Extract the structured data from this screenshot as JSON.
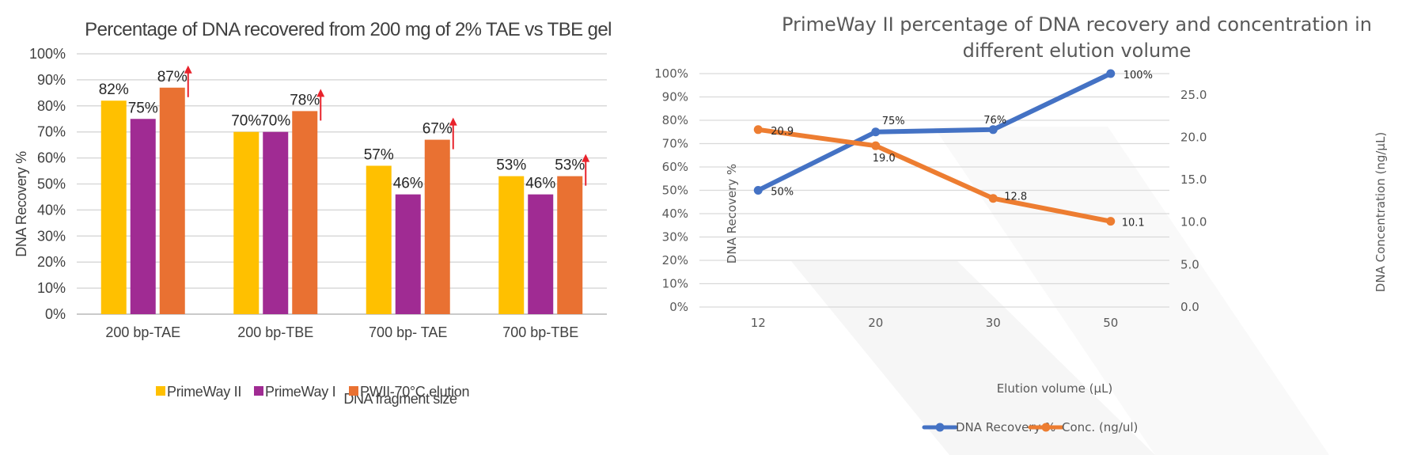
{
  "chart_data": [
    {
      "type": "bar",
      "title": "Percentage of DNA recovered from 200 mg of 2% TAE vs TBE gel",
      "xlabel": "DNA fragment size",
      "ylabel": "DNA Recovery %",
      "ylim": [
        0,
        100
      ],
      "y_ticks": [
        "0%",
        "10%",
        "20%",
        "30%",
        "40%",
        "50%",
        "60%",
        "70%",
        "80%",
        "90%",
        "100%"
      ],
      "categories": [
        "200 bp-TAE",
        "200 bp-TBE",
        "700 bp- TAE",
        "700 bp-TBE"
      ],
      "series": [
        {
          "name": "PrimeWay II",
          "color": "#FFC000",
          "values": [
            82,
            70,
            57,
            53
          ],
          "labels": [
            "82%",
            "70%",
            "57%",
            "53%"
          ]
        },
        {
          "name": "PrimeWay I",
          "color": "#A02B93",
          "values": [
            75,
            70,
            46,
            46
          ],
          "labels": [
            "75%",
            "70%",
            "46%",
            "46%"
          ]
        },
        {
          "name": "PWII-70°C elution",
          "color": "#E97132",
          "values": [
            87,
            78,
            67,
            53
          ],
          "labels": [
            "87%",
            "78%",
            "67%",
            "53%"
          ]
        }
      ],
      "annotation_arrow_color": "#E8222B",
      "grid": true,
      "legend_position": "bottom"
    },
    {
      "type": "line",
      "title_lines": [
        "PrimeWay II percentage of DNA recovery and concentration in",
        "different elution volume"
      ],
      "xlabel": "Elution volume (µL)",
      "ylabel": "DNA Recovery %",
      "ylabel_right": "DNA Concentration (ng/µL)",
      "categories": [
        "12",
        "20",
        "30",
        "50"
      ],
      "ylim": [
        0,
        100
      ],
      "ylim_right": [
        0,
        27.5
      ],
      "y_ticks": [
        "0%",
        "10%",
        "20%",
        "30%",
        "40%",
        "50%",
        "60%",
        "70%",
        "80%",
        "90%",
        "100%"
      ],
      "y_ticks_right": [
        "0.0",
        "5.0",
        "10.0",
        "15.0",
        "20.0",
        "25.0"
      ],
      "series": [
        {
          "name": "DNA Recovery %",
          "axis": "left",
          "color": "#4472C4",
          "values": [
            50,
            75,
            76,
            100
          ],
          "labels": [
            "50%",
            "75%",
            "76%",
            "100%"
          ]
        },
        {
          "name": "Conc. (ng/ul)",
          "axis": "right",
          "color": "#ED7D31",
          "values": [
            20.9,
            19.0,
            12.8,
            10.1
          ],
          "labels": [
            "20.9",
            "19.0",
            "12.8",
            "10.1"
          ]
        }
      ],
      "grid": true,
      "legend_position": "bottom"
    }
  ]
}
